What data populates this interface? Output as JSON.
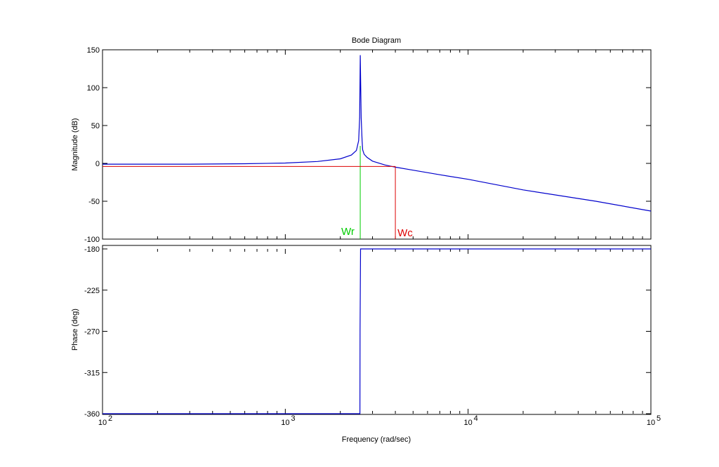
{
  "figure": {
    "title": "Bode Diagram",
    "xlabel": "Frequency  (rad/sec)",
    "background": "#ffffff"
  },
  "chart_data": [
    {
      "type": "line",
      "title": "Bode Diagram",
      "xlabel": "",
      "ylabel": "Magnitude (dB)",
      "xscale": "log",
      "xlim": [
        100,
        100000
      ],
      "ylim": [
        -100,
        150
      ],
      "yticks": [
        "150",
        "100",
        "50",
        "0",
        "-50",
        "-100"
      ],
      "grid": false,
      "series": [
        {
          "color": "#0000cc",
          "x": [
            100,
            300,
            600,
            1000,
            1500,
            2000,
            2300,
            2450,
            2520,
            2550,
            2570,
            2600,
            2630,
            2650,
            2700,
            2800,
            3000,
            3500,
            4000,
            5000,
            7000,
            10000,
            20000,
            50000,
            100000
          ],
          "y": [
            -1,
            -1,
            -0.5,
            0.5,
            2.5,
            6,
            11,
            17,
            30,
            60,
            143,
            60,
            30,
            18,
            12,
            8,
            3,
            -2,
            -5,
            -9,
            -15,
            -21,
            -35,
            -50,
            -63
          ]
        }
      ],
      "annotations": [
        {
          "text": "Wr",
          "x": 2570,
          "color": "#00cc00"
        },
        {
          "text": "Wc",
          "x": 4000,
          "y": -4,
          "color": "#dd0000"
        }
      ]
    },
    {
      "type": "line",
      "xlabel": "Frequency  (rad/sec)",
      "ylabel": "Phase (deg)",
      "xscale": "log",
      "xlim": [
        100,
        100000
      ],
      "ylim": [
        -360,
        -180
      ],
      "yticks": [
        "-180",
        "-225",
        "-270",
        "-315",
        "-360"
      ],
      "xticks": [
        "10",
        "10",
        "10",
        "10"
      ],
      "xtick_exponents": [
        "2",
        "3",
        "4",
        "5"
      ],
      "grid": false,
      "series": [
        {
          "color": "#0000cc",
          "x": [
            100,
            2560,
            2565,
            2570,
            2580,
            100000
          ],
          "y": [
            -360,
            -360,
            -270,
            -230,
            -180,
            -180
          ]
        }
      ]
    }
  ]
}
